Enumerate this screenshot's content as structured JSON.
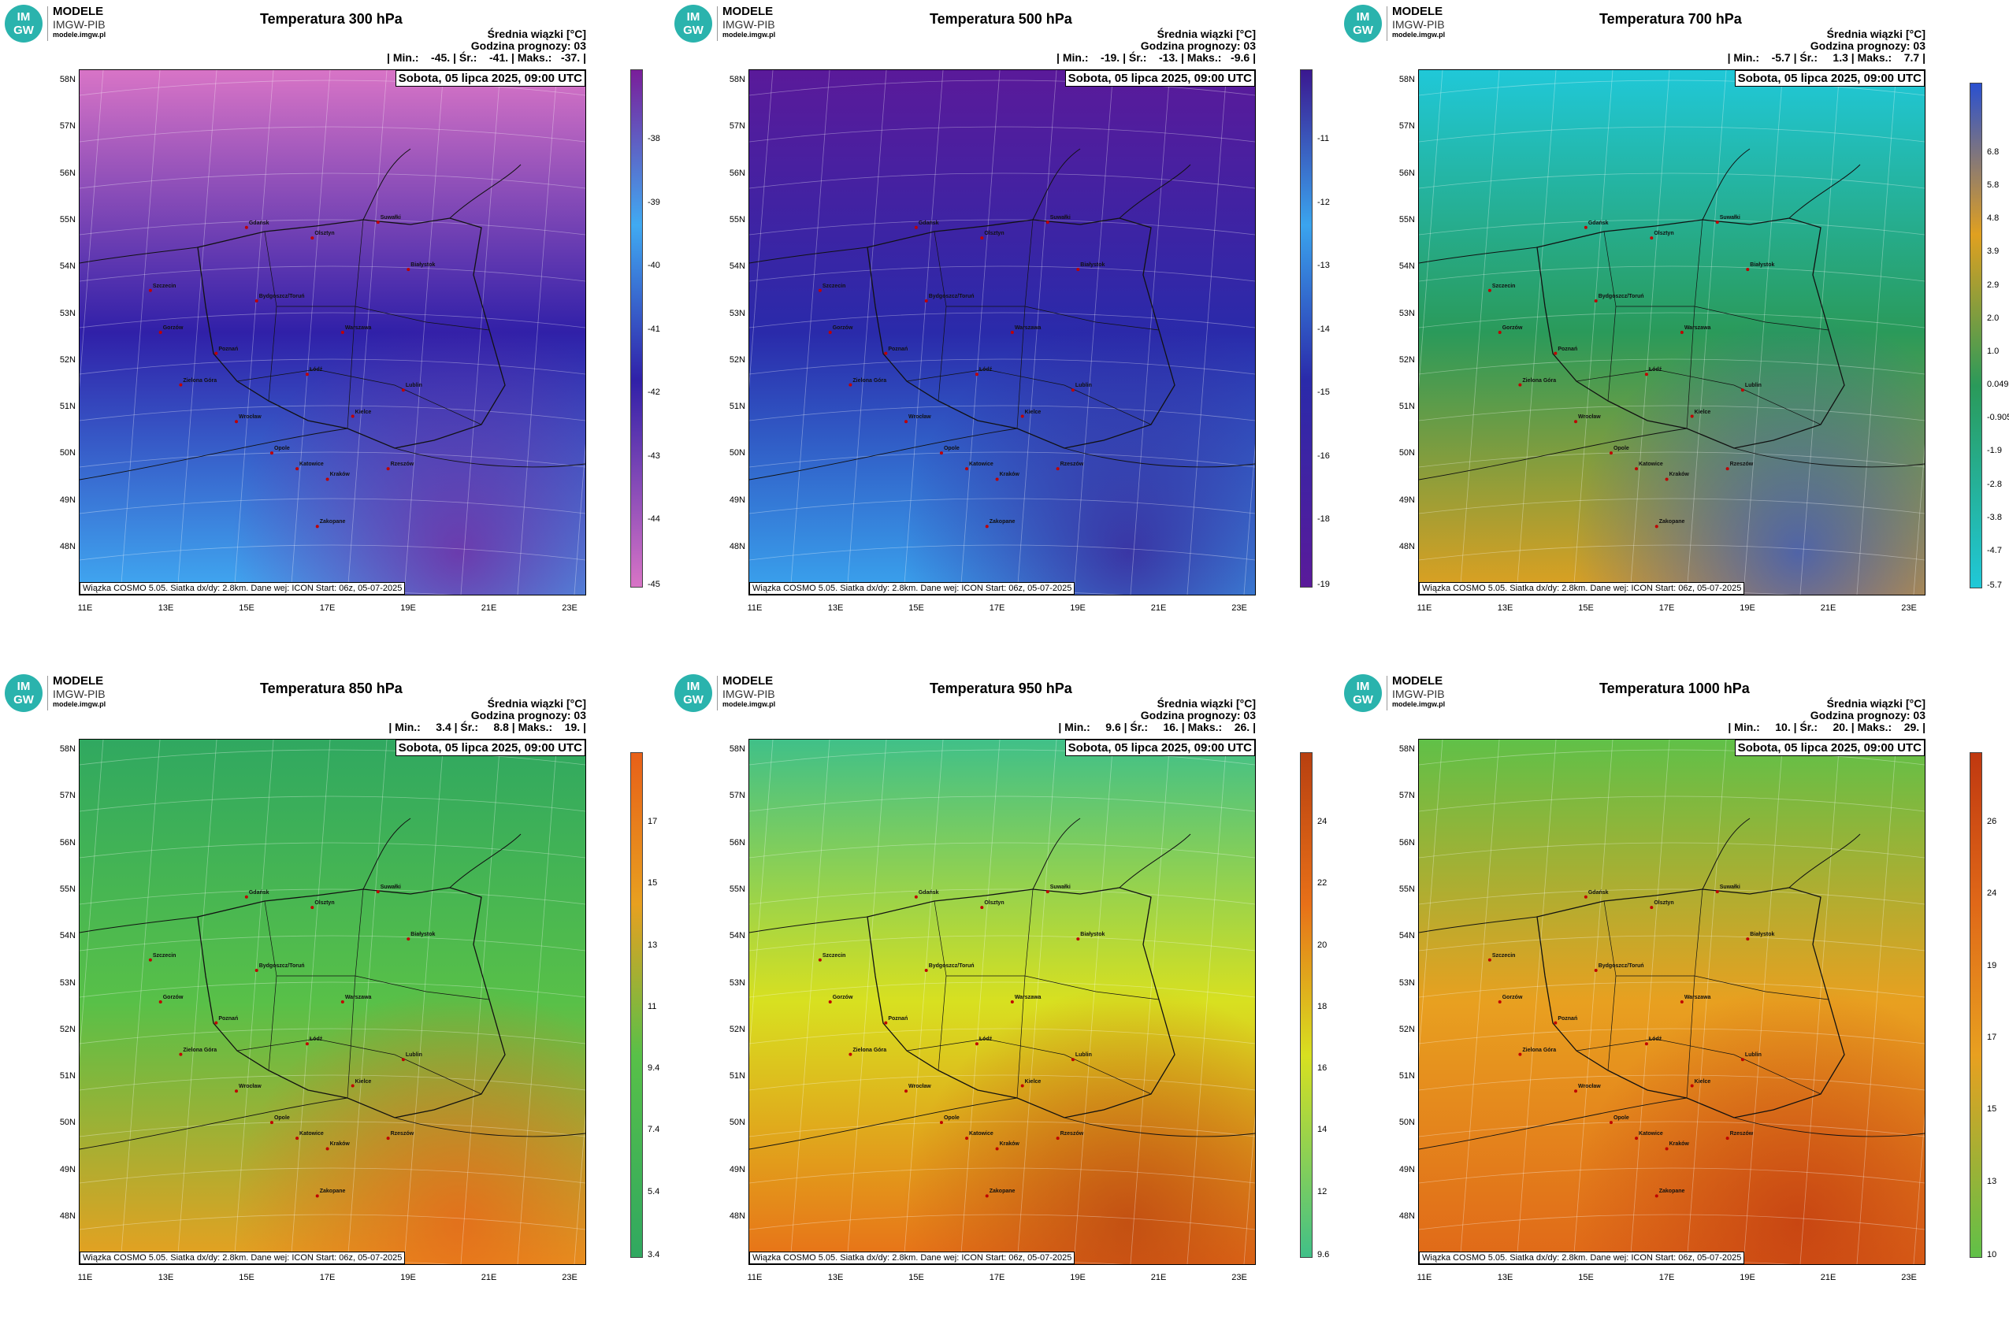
{
  "logo": {
    "badge_top": "IM",
    "badge_bottom": "GW",
    "line1": "MODELE",
    "line2": "IMGW-PIB",
    "line3": "modele.imgw.pl"
  },
  "common": {
    "subtitle": "Średnia wiązki [°C]",
    "forecast_hour": "Godzina prognozy: 03",
    "date": "Sobota, 05 lipca 2025, 09:00 UTC",
    "footer": "Wiązka COSMO 5.05. Siatka dx/dy: 2.8km. Dane wej: ICON Start: 06z, 05-07-2025",
    "lat_labels": [
      "58N",
      "57N",
      "56N",
      "55N",
      "54N",
      "53N",
      "52N",
      "51N",
      "50N",
      "49N",
      "48N"
    ],
    "lon_labels": [
      "11E",
      "13E",
      "15E",
      "17E",
      "19E",
      "21E",
      "23E"
    ],
    "cities": [
      "Gdańsk",
      "Olsztyn",
      "Suwałki",
      "Białystok",
      "Szczecin",
      "Bydgoszcz/Toruń",
      "Gorzów",
      "Poznań",
      "Warszawa",
      "Łódź",
      "Zielona Góra",
      "Lublin",
      "Wrocław",
      "Kielce",
      "Opole",
      "Katowice",
      "Kraków",
      "Rzeszów",
      "Zakopane"
    ]
  },
  "panels": [
    {
      "title": "Temperatura 300 hPa",
      "stats": "| Min.:    -45. | Śr.:    -41. | Maks.:   -37. |",
      "colorbar": [
        "-38",
        "-39",
        "-40",
        "-41",
        "-42",
        "-43",
        "-44",
        "-45"
      ],
      "colors": {
        "north": "#d874c6",
        "mid": "#3020a8",
        "south": "#40aaf2",
        "accent": "#7a1e9a"
      }
    },
    {
      "title": "Temperatura 500 hPa",
      "stats": "| Min.:    -19. | Śr.:    -13. | Maks.:   -9.6 |",
      "colorbar": [
        "-11",
        "-12",
        "-13",
        "-14",
        "-15",
        "-16",
        "-18",
        "-19"
      ],
      "colors": {
        "north": "#5a1a9a",
        "mid": "#2a2aaa",
        "south": "#3aa4ee",
        "accent": "#3a1890"
      }
    },
    {
      "title": "Temperatura 700 hPa",
      "stats": "| Min.:    -5.7 | Śr.:     1.3 | Maks.:    7.7 |",
      "colorbar": [
        "6.8",
        "5.8",
        "4.8",
        "3.9",
        "2.9",
        "2.0",
        "1.0",
        "0.049",
        "-0.905",
        "-1.9",
        "-2.8",
        "-3.8",
        "-4.7",
        "-5.7"
      ],
      "colors": {
        "north": "#20c8d8",
        "mid": "#2a9a5a",
        "south": "#e0a020",
        "accent": "#2a50d0"
      }
    },
    {
      "title": "Temperatura 850 hPa",
      "stats": "| Min.:     3.4 | Śr.:     8.8 | Maks.:    19. |",
      "colorbar": [
        "17",
        "15",
        "13",
        "11",
        "9.4",
        "7.4",
        "5.4",
        "3.4"
      ],
      "colors": {
        "north": "#30a860",
        "mid": "#58c048",
        "south": "#e8a020",
        "accent": "#e86018"
      }
    },
    {
      "title": "Temperatura 950 hPa",
      "stats": "| Min.:     9.6 | Śr.:     16. | Maks.:    26. |",
      "colorbar": [
        "24",
        "22",
        "20",
        "18",
        "16",
        "14",
        "12",
        "9.6"
      ],
      "colors": {
        "north": "#40c088",
        "mid": "#d8e020",
        "south": "#e87018",
        "accent": "#b84010"
      }
    },
    {
      "title": "Temperatura 1000 hPa",
      "stats": "| Min.:     10. | Śr.:     20. | Maks.:    29. |",
      "colorbar": [
        "26",
        "24",
        "19",
        "17",
        "15",
        "13",
        "10"
      ],
      "colors": {
        "north": "#60c048",
        "mid": "#e8a020",
        "south": "#e06818",
        "accent": "#c03810"
      }
    }
  ]
}
